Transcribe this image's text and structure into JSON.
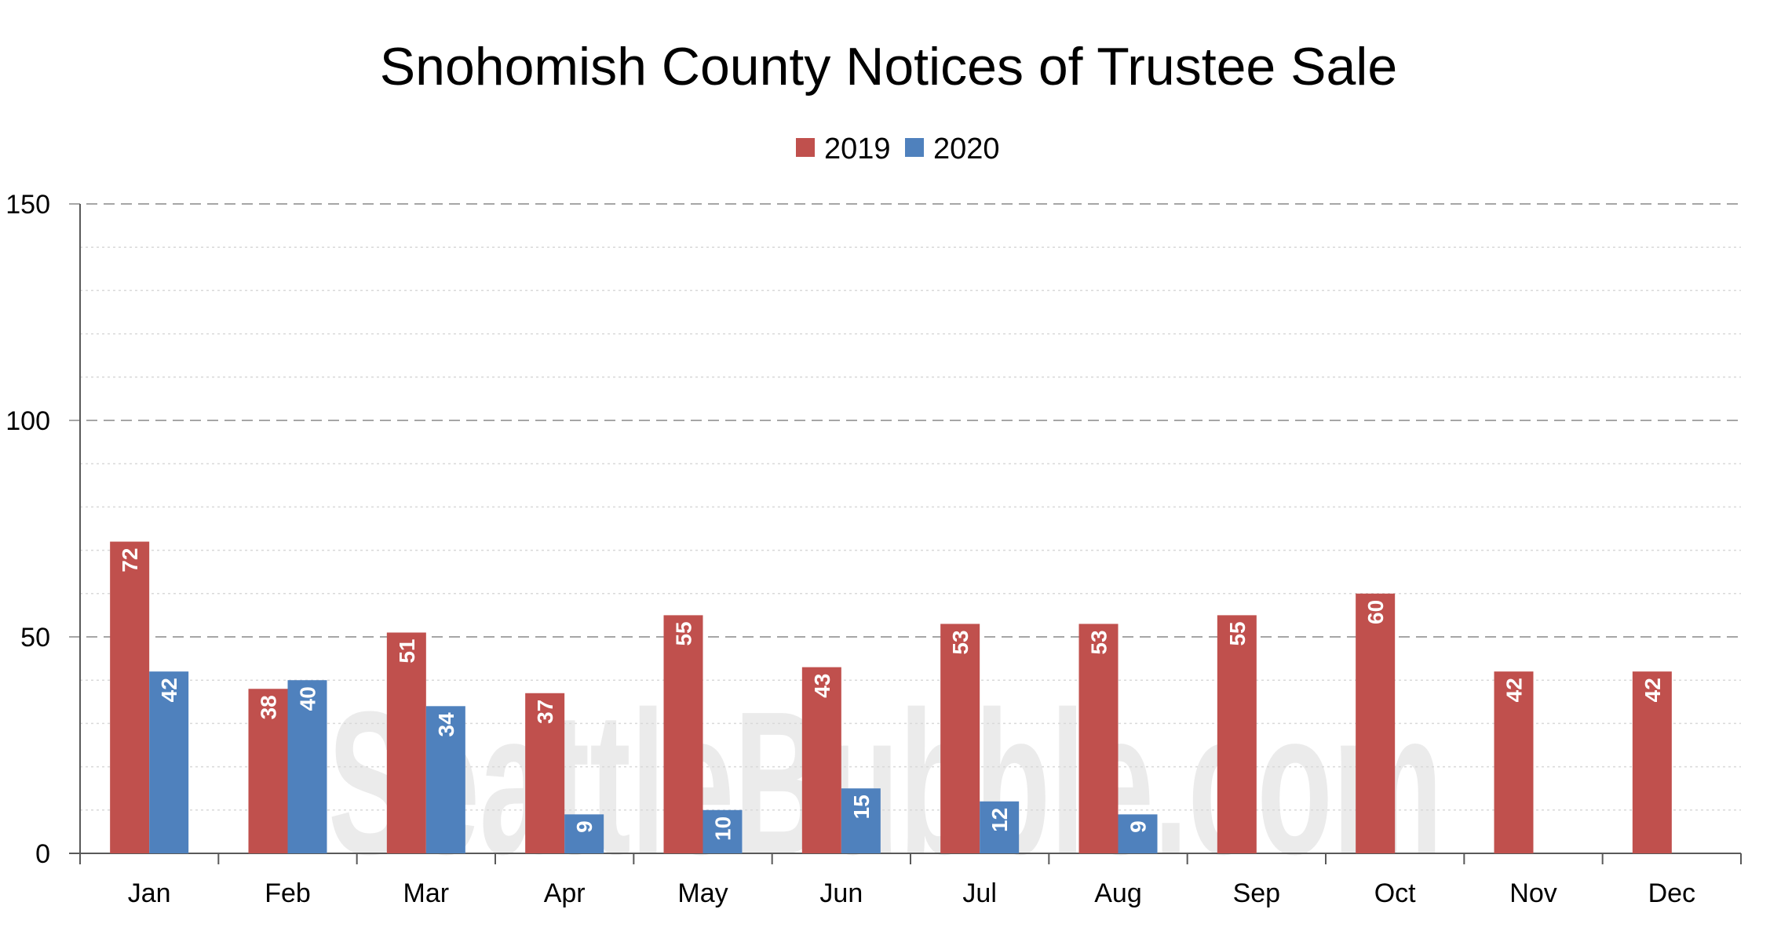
{
  "chart_data": {
    "type": "bar",
    "title": "Snohomish County Notices of Trustee Sale",
    "xlabel": "",
    "ylabel": "",
    "categories": [
      "Jan",
      "Feb",
      "Mar",
      "Apr",
      "May",
      "Jun",
      "Jul",
      "Aug",
      "Sep",
      "Oct",
      "Nov",
      "Dec"
    ],
    "series": [
      {
        "name": "2019",
        "color": "#c0504d",
        "values": [
          72,
          38,
          51,
          37,
          55,
          43,
          53,
          53,
          55,
          60,
          42,
          42
        ]
      },
      {
        "name": "2020",
        "color": "#4f81bd",
        "values": [
          42,
          40,
          34,
          9,
          10,
          15,
          12,
          9,
          null,
          null,
          null,
          null
        ]
      }
    ],
    "ylim": [
      0,
      150
    ],
    "yticks": [
      0,
      50,
      100,
      150
    ],
    "grid": "horizontal dashed",
    "legend_position": "top-center",
    "watermark": "SeattleBubble.com"
  }
}
